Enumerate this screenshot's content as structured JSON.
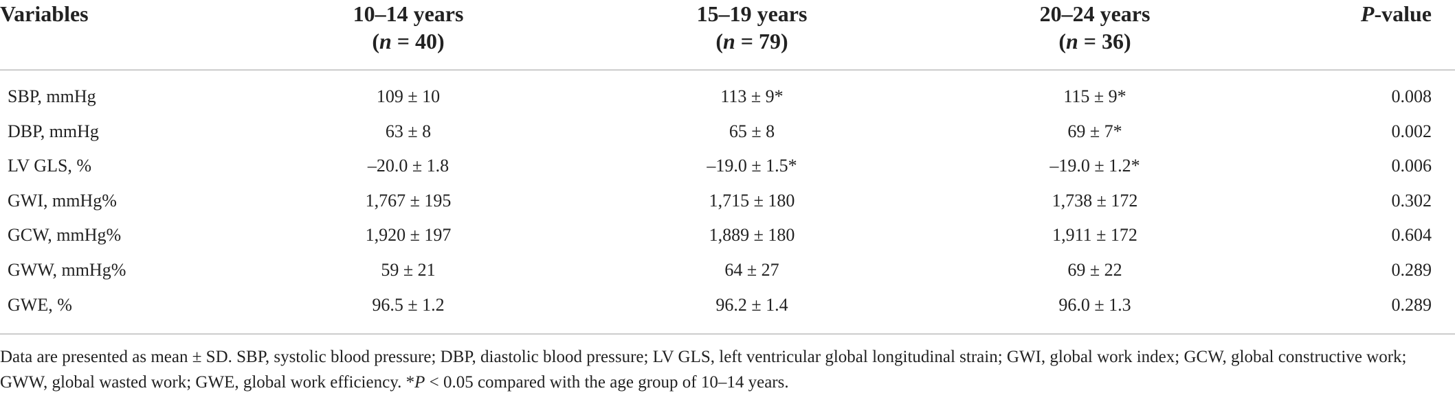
{
  "table": {
    "header": {
      "variable": "Variables",
      "groups": [
        {
          "label": "10–14 years",
          "n": [
            "(",
            "n",
            " = 40)"
          ]
        },
        {
          "label": "15–19 years",
          "n": [
            "(",
            "n",
            " = 79)"
          ]
        },
        {
          "label": "20–24 years",
          "n": [
            "(",
            "n",
            " = 36)"
          ]
        }
      ],
      "p_value": [
        "P",
        "-value"
      ]
    },
    "rows": [
      [
        "SBP, mmHg",
        "109 ± 10",
        "113 ± 9*",
        "115 ± 9*",
        "0.008"
      ],
      [
        "DBP, mmHg",
        "63 ± 8",
        "65 ± 8",
        "69 ± 7*",
        "0.002"
      ],
      [
        "LV GLS, %",
        "–20.0 ± 1.8",
        "–19.0 ± 1.5*",
        "–19.0 ± 1.2*",
        "0.006"
      ],
      [
        "GWI, mmHg%",
        "1,767 ± 195",
        "1,715 ± 180",
        "1,738 ± 172",
        "0.302"
      ],
      [
        "GCW, mmHg%",
        "1,920 ± 197",
        "1,889 ± 180",
        "1,911 ± 172",
        "0.604"
      ],
      [
        "GWW, mmHg%",
        "59 ± 21",
        "64 ± 27",
        "69 ± 22",
        "0.289"
      ],
      [
        "GWE, %",
        "96.5 ± 1.2",
        "96.2 ± 1.4",
        "96.0 ± 1.3",
        "0.289"
      ]
    ],
    "footnote": [
      "Data are presented as mean ± SD. SBP, systolic blood pressure; DBP, diastolic blood pressure; LV GLS, left ventricular global longitudinal strain; GWI, global work index; GCW, global constructive work; GWW, global wasted work; GWE, global work efficiency. *",
      "P",
      " < 0.05 compared with the age group of 10–14 years."
    ]
  }
}
